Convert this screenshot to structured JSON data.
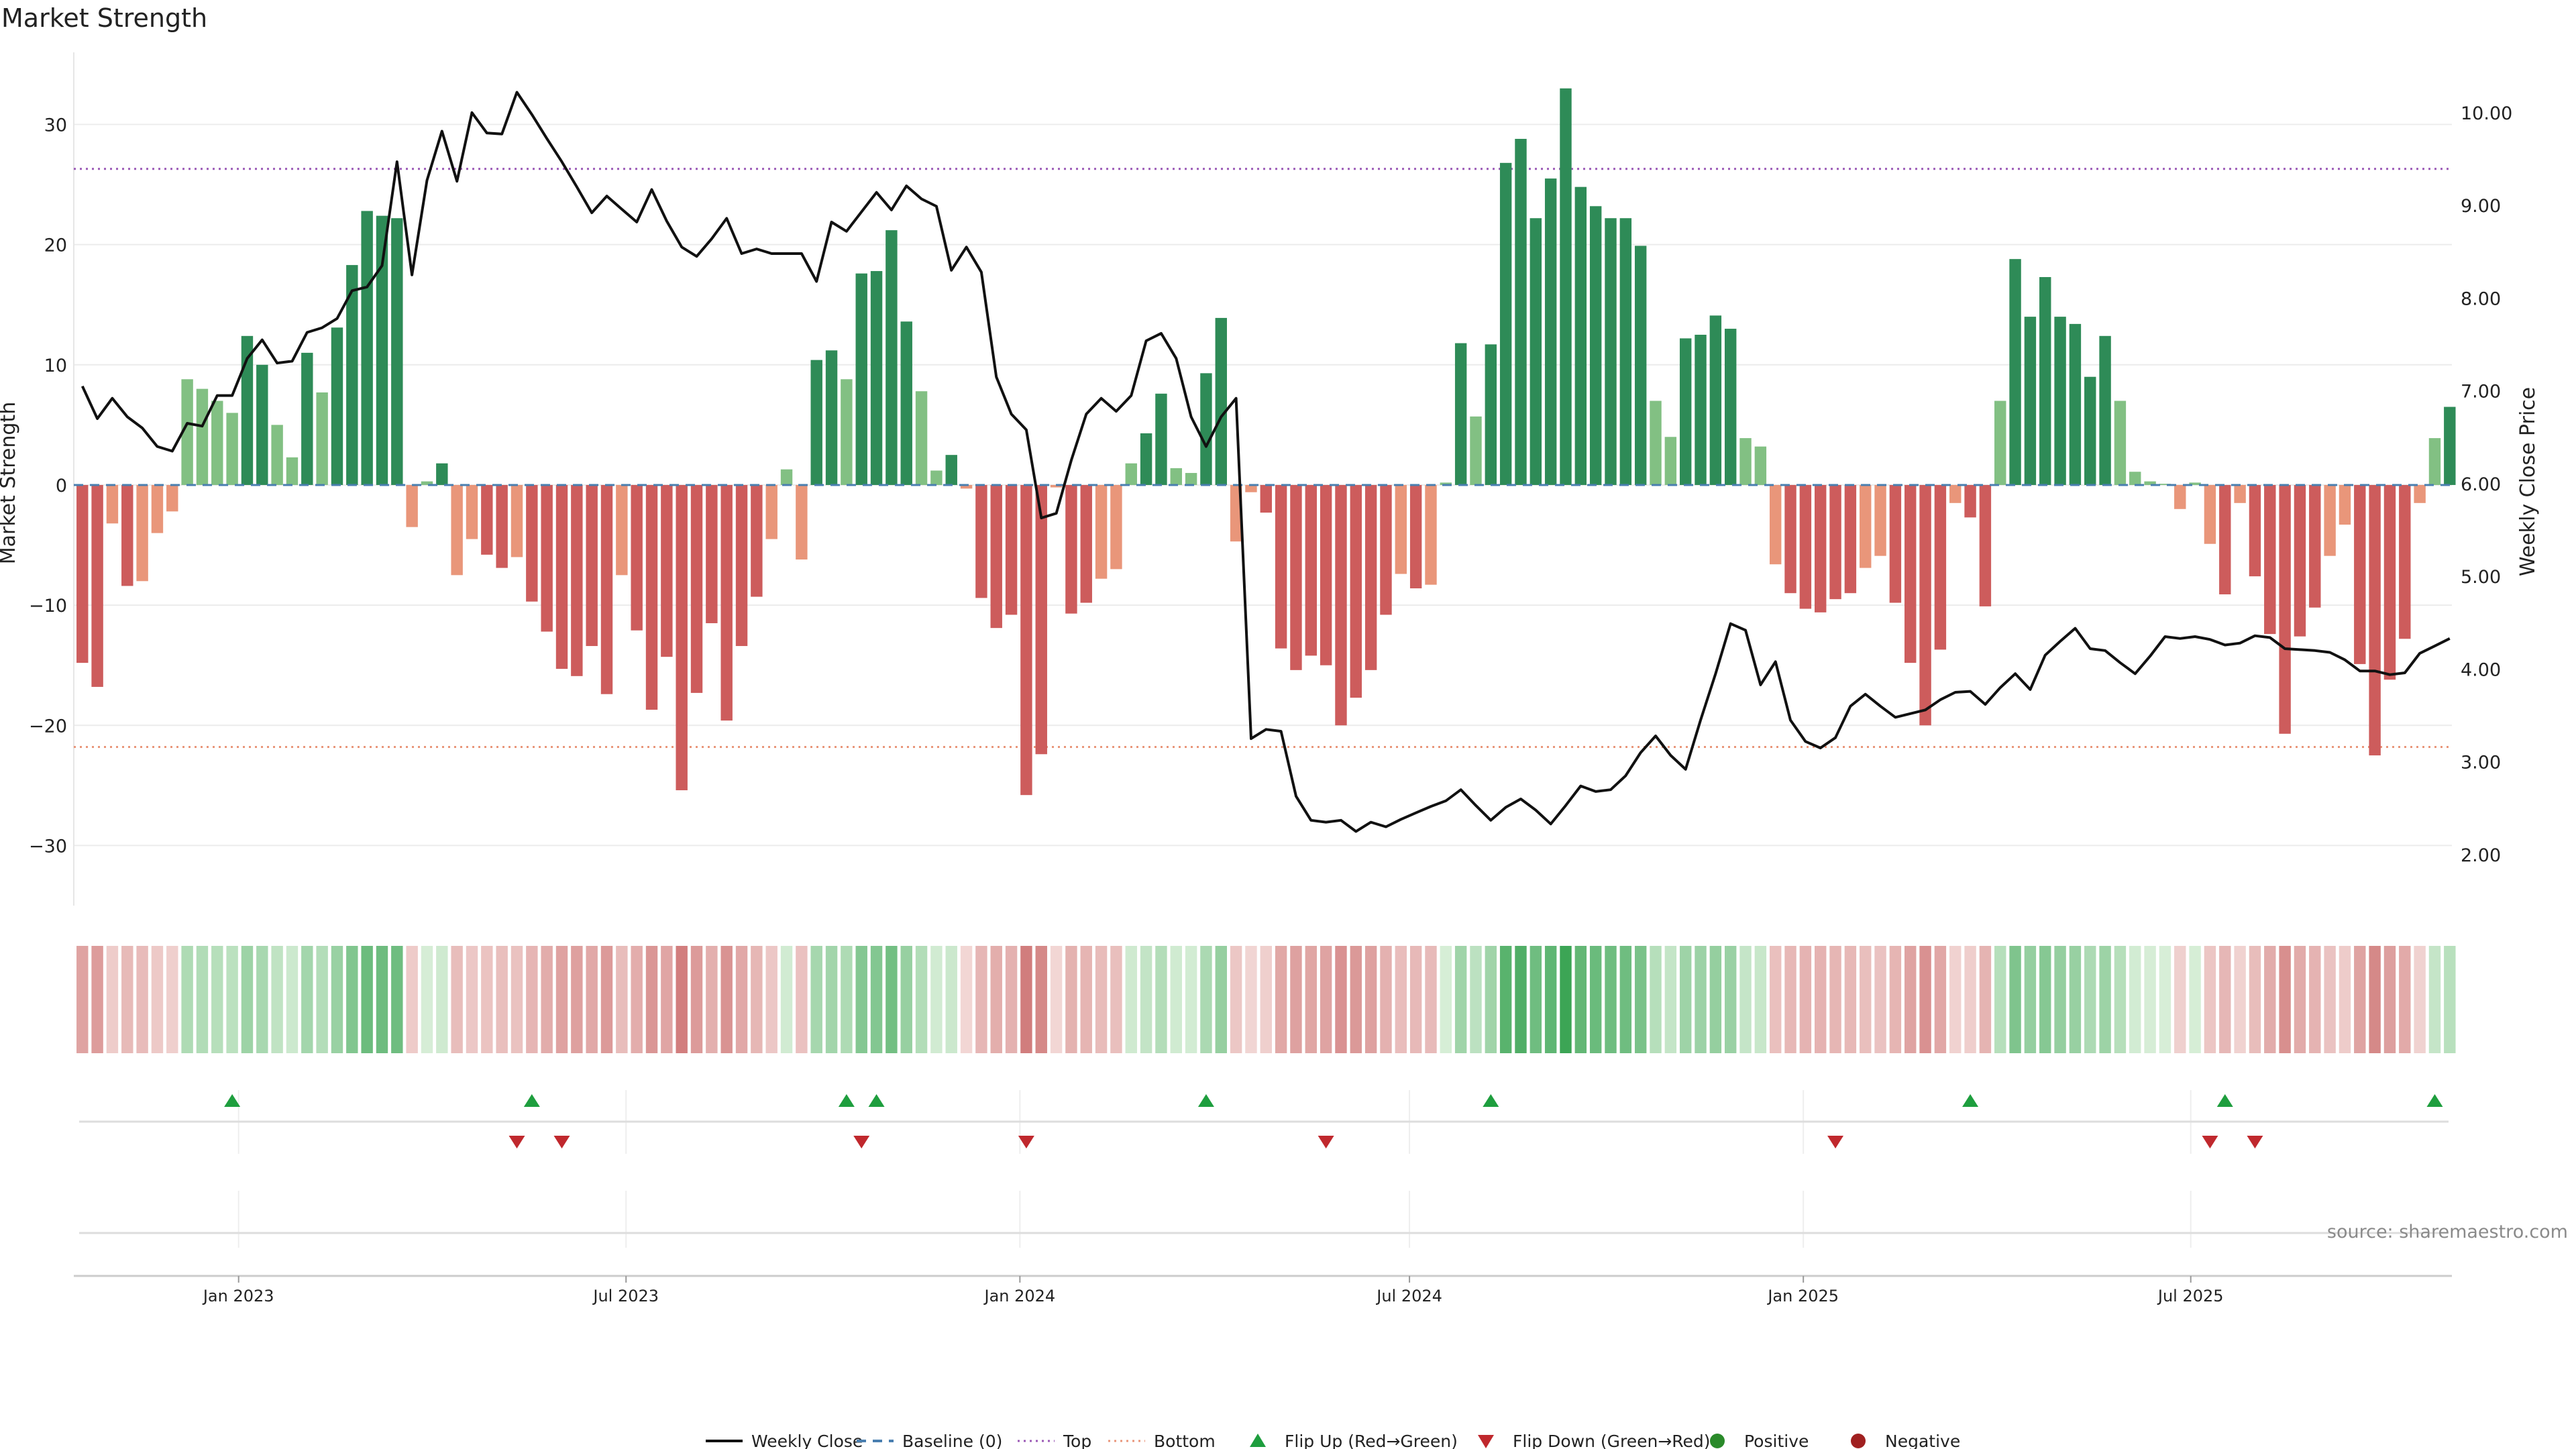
{
  "title": "Market Strength",
  "source": "source: sharemaestro.com",
  "colors": {
    "strong_positive": "#2e8b57",
    "weak_positive": "#82c083",
    "strong_negative": "#cd5c5c",
    "weak_negative": "#e9967a",
    "price_line": "#111111",
    "baseline": "#4a7fb0",
    "top": "#9b59b6",
    "bottom": "#e9967a",
    "flip_up": "#1e9e3e",
    "flip_down": "#c0282d",
    "positive": "#2a8a2a",
    "negative": "#a02020"
  },
  "legend": [
    {
      "label": "Weekly Close",
      "kind": "line",
      "color": "#111111"
    },
    {
      "label": "Baseline (0)",
      "kind": "dash",
      "color": "#4a7fb0"
    },
    {
      "label": "Top",
      "kind": "dot",
      "color": "#9b59b6"
    },
    {
      "label": "Bottom",
      "kind": "dot",
      "color": "#e9967a"
    },
    {
      "label": "Flip Up (Red→Green)",
      "kind": "tri-up",
      "color": "#1e9e3e"
    },
    {
      "label": "Flip Down (Green→Red)",
      "kind": "tri-down",
      "color": "#c0282d"
    },
    {
      "label": "Positive",
      "kind": "circle",
      "color": "#2a8a2a"
    },
    {
      "label": "Negative",
      "kind": "circle",
      "color": "#a02020"
    }
  ],
  "chart_data": {
    "type": "bar",
    "ylabel": "Market Strength",
    "y2label": "Weekly Close Price",
    "ylim": [
      -35,
      36
    ],
    "y2lim": [
      1.45,
      10.65
    ],
    "yticks": [
      30,
      20,
      10,
      0,
      -10,
      -20,
      -30
    ],
    "ytick_labels": [
      "30",
      "20",
      "10",
      "0",
      "−10",
      "−20",
      "−30"
    ],
    "y2ticks": [
      10,
      9,
      8,
      7,
      6,
      5,
      4,
      3,
      2
    ],
    "y2tick_labels": [
      "10.00",
      "9.00",
      "8.00",
      "7.00",
      "6.00",
      "5.00",
      "4.00",
      "3.00",
      "2.00"
    ],
    "top_line": 26.3,
    "bottom_line": -21.8,
    "xlim": [
      "2022-10-16",
      "2025-10-31"
    ],
    "xticks": [
      "2023-01-01",
      "2023-07-01",
      "2024-01-01",
      "2024-07-01",
      "2025-01-01",
      "2025-07-01"
    ],
    "xtick_labels": [
      "Jan 2023",
      "Jul 2023",
      "Jan 2024",
      "Jul 2024",
      "Jan 2025",
      "Jul 2025"
    ],
    "bars_start": "2022-10-20",
    "bars_interval_days": 7,
    "bar_values": [
      -14.8,
      -16.8,
      -3.2,
      -8.4,
      -8.0,
      -4.0,
      -2.2,
      8.8,
      8.0,
      7.0,
      6.0,
      12.4,
      10.0,
      5.0,
      2.3,
      11.0,
      7.7,
      13.1,
      18.3,
      22.8,
      22.4,
      22.2,
      -3.5,
      0.3,
      1.8,
      -7.5,
      -4.5,
      -5.8,
      -6.9,
      -6.0,
      -9.7,
      -12.2,
      -15.3,
      -15.9,
      -13.4,
      -17.4,
      -7.5,
      -12.1,
      -18.7,
      -14.3,
      -25.4,
      -17.3,
      -11.5,
      -19.6,
      -13.4,
      -9.3,
      -4.5,
      1.3,
      -6.2,
      10.4,
      11.2,
      8.8,
      17.6,
      17.8,
      21.2,
      13.6,
      7.8,
      1.2,
      2.5,
      -0.3,
      -9.4,
      -11.9,
      -10.8,
      -25.8,
      -22.4,
      -0.2,
      -10.7,
      -9.8,
      -7.8,
      -7.0,
      1.8,
      4.3,
      7.6,
      1.4,
      1.0,
      9.3,
      13.9,
      -4.7,
      -0.6,
      -2.3,
      -13.6,
      -15.4,
      -14.2,
      -15.0,
      -20.0,
      -17.7,
      -15.4,
      -10.8,
      -7.4,
      -8.6,
      -8.3,
      0.2,
      11.8,
      5.7,
      11.7,
      26.8,
      28.8,
      22.2,
      25.5,
      33.0,
      24.8,
      23.2,
      22.2,
      22.2,
      19.9,
      7.0,
      4.0,
      12.2,
      12.5,
      14.1,
      13.0,
      3.9,
      3.2,
      -6.6,
      -9.0,
      -10.3,
      -10.6,
      -9.5,
      -9.0,
      -6.9,
      -5.9,
      -9.8,
      -14.8,
      -20.0,
      -13.7,
      -1.5,
      -2.7,
      -10.1,
      7.0,
      18.8,
      14.0,
      17.3,
      14.0,
      13.4,
      9.0,
      12.4,
      7.0,
      1.1,
      0.3,
      0.1,
      -2.0,
      0.2,
      -4.9,
      -9.1,
      -1.5,
      -7.6,
      -12.4,
      -20.7,
      -12.6,
      -10.2,
      -5.9,
      -3.3,
      -14.9,
      -22.5,
      -16.2,
      -12.8,
      -1.5,
      3.9,
      6.5
    ],
    "price_start": "2022-10-20",
    "price_interval_days": 7,
    "price": [
      7.05,
      6.7,
      6.92,
      6.72,
      6.6,
      6.4,
      6.35,
      6.65,
      6.62,
      6.95,
      6.95,
      7.35,
      7.55,
      7.3,
      7.32,
      7.63,
      7.68,
      7.78,
      8.08,
      8.12,
      8.35,
      9.47,
      8.25,
      9.27,
      9.8,
      9.26,
      10.0,
      9.78,
      9.77,
      10.22,
      9.98,
      9.72,
      9.47,
      9.2,
      8.92,
      9.1,
      8.96,
      8.82,
      9.17,
      8.83,
      8.55,
      8.45,
      8.64,
      8.86,
      8.48,
      8.53,
      8.48,
      8.48,
      8.48,
      8.18,
      8.82,
      8.72,
      8.93,
      9.14,
      8.95,
      9.21,
      9.07,
      8.99,
      8.3,
      8.55,
      8.28,
      7.15,
      6.75,
      6.58,
      5.63,
      5.68,
      6.25,
      6.75,
      6.92,
      6.78,
      6.95,
      7.54,
      7.62,
      7.35,
      6.72,
      6.4,
      6.72,
      6.92,
      3.25,
      3.35,
      3.33,
      2.63,
      2.37,
      2.35,
      2.37,
      2.25,
      2.35,
      2.3,
      2.38,
      2.45,
      2.52,
      2.58,
      2.7,
      2.53,
      2.37,
      2.51,
      2.6,
      2.48,
      2.33,
      2.53,
      2.74,
      2.68,
      2.7,
      2.85,
      3.1,
      3.28,
      3.07,
      2.92,
      3.45,
      3.95,
      4.49,
      4.42,
      3.83,
      4.08,
      3.45,
      3.22,
      3.15,
      3.26,
      3.6,
      3.73,
      3.6,
      3.48,
      3.52,
      3.56,
      3.67,
      3.75,
      3.76,
      3.62,
      3.8,
      3.95,
      3.78,
      4.15,
      4.3,
      4.44,
      4.22,
      4.2,
      4.07,
      3.95,
      4.14,
      4.35,
      4.33,
      4.35,
      4.32,
      4.26,
      4.28,
      4.36,
      4.34,
      4.22,
      4.21,
      4.2,
      4.18,
      4.1,
      3.98,
      3.98,
      3.94,
      3.96,
      4.17,
      4.25,
      4.33
    ]
  },
  "strip_values": [
    -14.8,
    -16.8,
    -3.2,
    -8.4,
    -8.0,
    -4.0,
    -2.2,
    8.8,
    8.0,
    7.0,
    6.0,
    12.4,
    10.0,
    5.0,
    2.3,
    11.0,
    7.7,
    13.1,
    18.3,
    22.8,
    22.4,
    22.2,
    -3.5,
    0.3,
    1.8,
    -7.5,
    -4.5,
    -5.8,
    -6.9,
    -6.0,
    -9.7,
    -12.2,
    -15.3,
    -15.9,
    -13.4,
    -17.4,
    -7.5,
    -12.1,
    -18.7,
    -14.3,
    -25.4,
    -17.3,
    -11.5,
    -19.6,
    -13.4,
    -9.3,
    -4.5,
    1.3,
    -6.2,
    10.4,
    11.2,
    8.8,
    17.6,
    17.8,
    21.2,
    13.6,
    7.8,
    1.2,
    2.5,
    -0.3,
    -9.4,
    -11.9,
    -10.8,
    -25.8,
    -22.4,
    -0.2,
    -10.7,
    -9.8,
    -7.8,
    -7.0,
    1.8,
    4.3,
    7.6,
    1.4,
    1.0,
    9.3,
    13.9,
    -4.7,
    -0.6,
    -2.3,
    -13.6,
    -15.4,
    -14.2,
    -15.0,
    -20.0,
    -17.7,
    -15.4,
    -10.8,
    -7.4,
    -8.6,
    -8.3,
    0.2,
    11.8,
    5.7,
    11.7,
    26.8,
    28.8,
    22.2,
    25.5,
    33.0,
    24.8,
    23.2,
    22.2,
    22.2,
    19.9,
    7.0,
    4.0,
    12.2,
    12.5,
    14.1,
    13.0,
    3.9,
    3.2,
    -6.6,
    -9.0,
    -10.3,
    -10.6,
    -9.5,
    -9.0,
    -6.9,
    -5.9,
    -9.8,
    -14.8,
    -20.0,
    -13.7,
    -1.5,
    -2.7,
    -10.1,
    7.0,
    18.8,
    14.0,
    17.3,
    14.0,
    13.4,
    9.0,
    12.4,
    7.0,
    1.1,
    0.3,
    0.1,
    -2.0,
    0.2,
    -4.9,
    -9.1,
    -1.5,
    -7.6,
    -12.4,
    -20.7,
    -12.6,
    -10.2,
    -5.9,
    -3.3,
    -14.9,
    -22.5,
    -16.2,
    -12.8,
    -1.5,
    3.9,
    6.5
  ],
  "flip_up_dates": [
    "2022-12-29",
    "2023-05-18",
    "2023-10-12",
    "2023-10-26",
    "2024-03-28",
    "2024-08-08",
    "2025-03-20",
    "2025-07-17",
    "2025-10-23"
  ],
  "flip_down_dates": [
    "2023-05-11",
    "2023-06-01",
    "2023-10-19",
    "2024-01-04",
    "2024-05-23",
    "2025-01-16",
    "2025-07-10",
    "2025-07-31"
  ]
}
